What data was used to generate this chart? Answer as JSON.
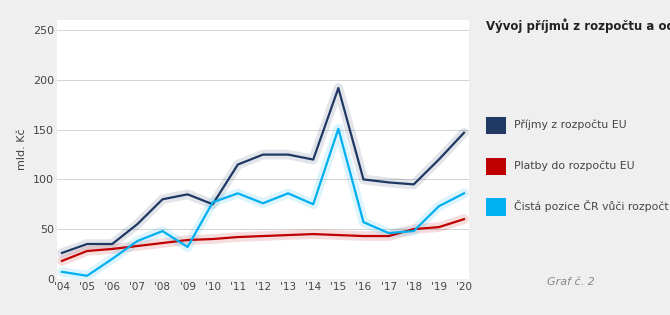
{
  "years": [
    "'04",
    "'05",
    "'06",
    "'07",
    "'08",
    "'09",
    "'10",
    "'11",
    "'12",
    "'13",
    "'14",
    "'15",
    "'16",
    "'17",
    "'18",
    "'19",
    "'20"
  ],
  "prijmy": [
    26,
    35,
    35,
    55,
    80,
    85,
    75,
    115,
    125,
    125,
    120,
    192,
    100,
    97,
    95,
    120,
    147
  ],
  "platby": [
    18,
    28,
    30,
    33,
    36,
    39,
    40,
    42,
    43,
    44,
    45,
    44,
    43,
    43,
    50,
    52,
    60
  ],
  "cista": [
    7,
    3,
    20,
    38,
    48,
    32,
    77,
    86,
    76,
    86,
    75,
    151,
    57,
    46,
    48,
    73,
    86
  ],
  "prijmy_color": "#1f3864",
  "platby_color": "#c00000",
  "cista_color": "#00b0f0",
  "title": "Vývoj příjmů z rozpočtu a odv",
  "ylabel": "mld. Kč",
  "ylim": [
    0,
    260
  ],
  "yticks": [
    0,
    50,
    100,
    150,
    200,
    250
  ],
  "legend_labels": [
    "Příjmy z rozpočtu EU",
    "Platby do rozpočtu EU",
    "Čistá pozice ČR vůči rozpočt"
  ],
  "graf_label": "Graf č. 2",
  "background_color": "#efefef",
  "plot_bg_color": "#ffffff",
  "line_width": 1.6,
  "shadow_alpha": 0.13,
  "shadow_lw": 7
}
